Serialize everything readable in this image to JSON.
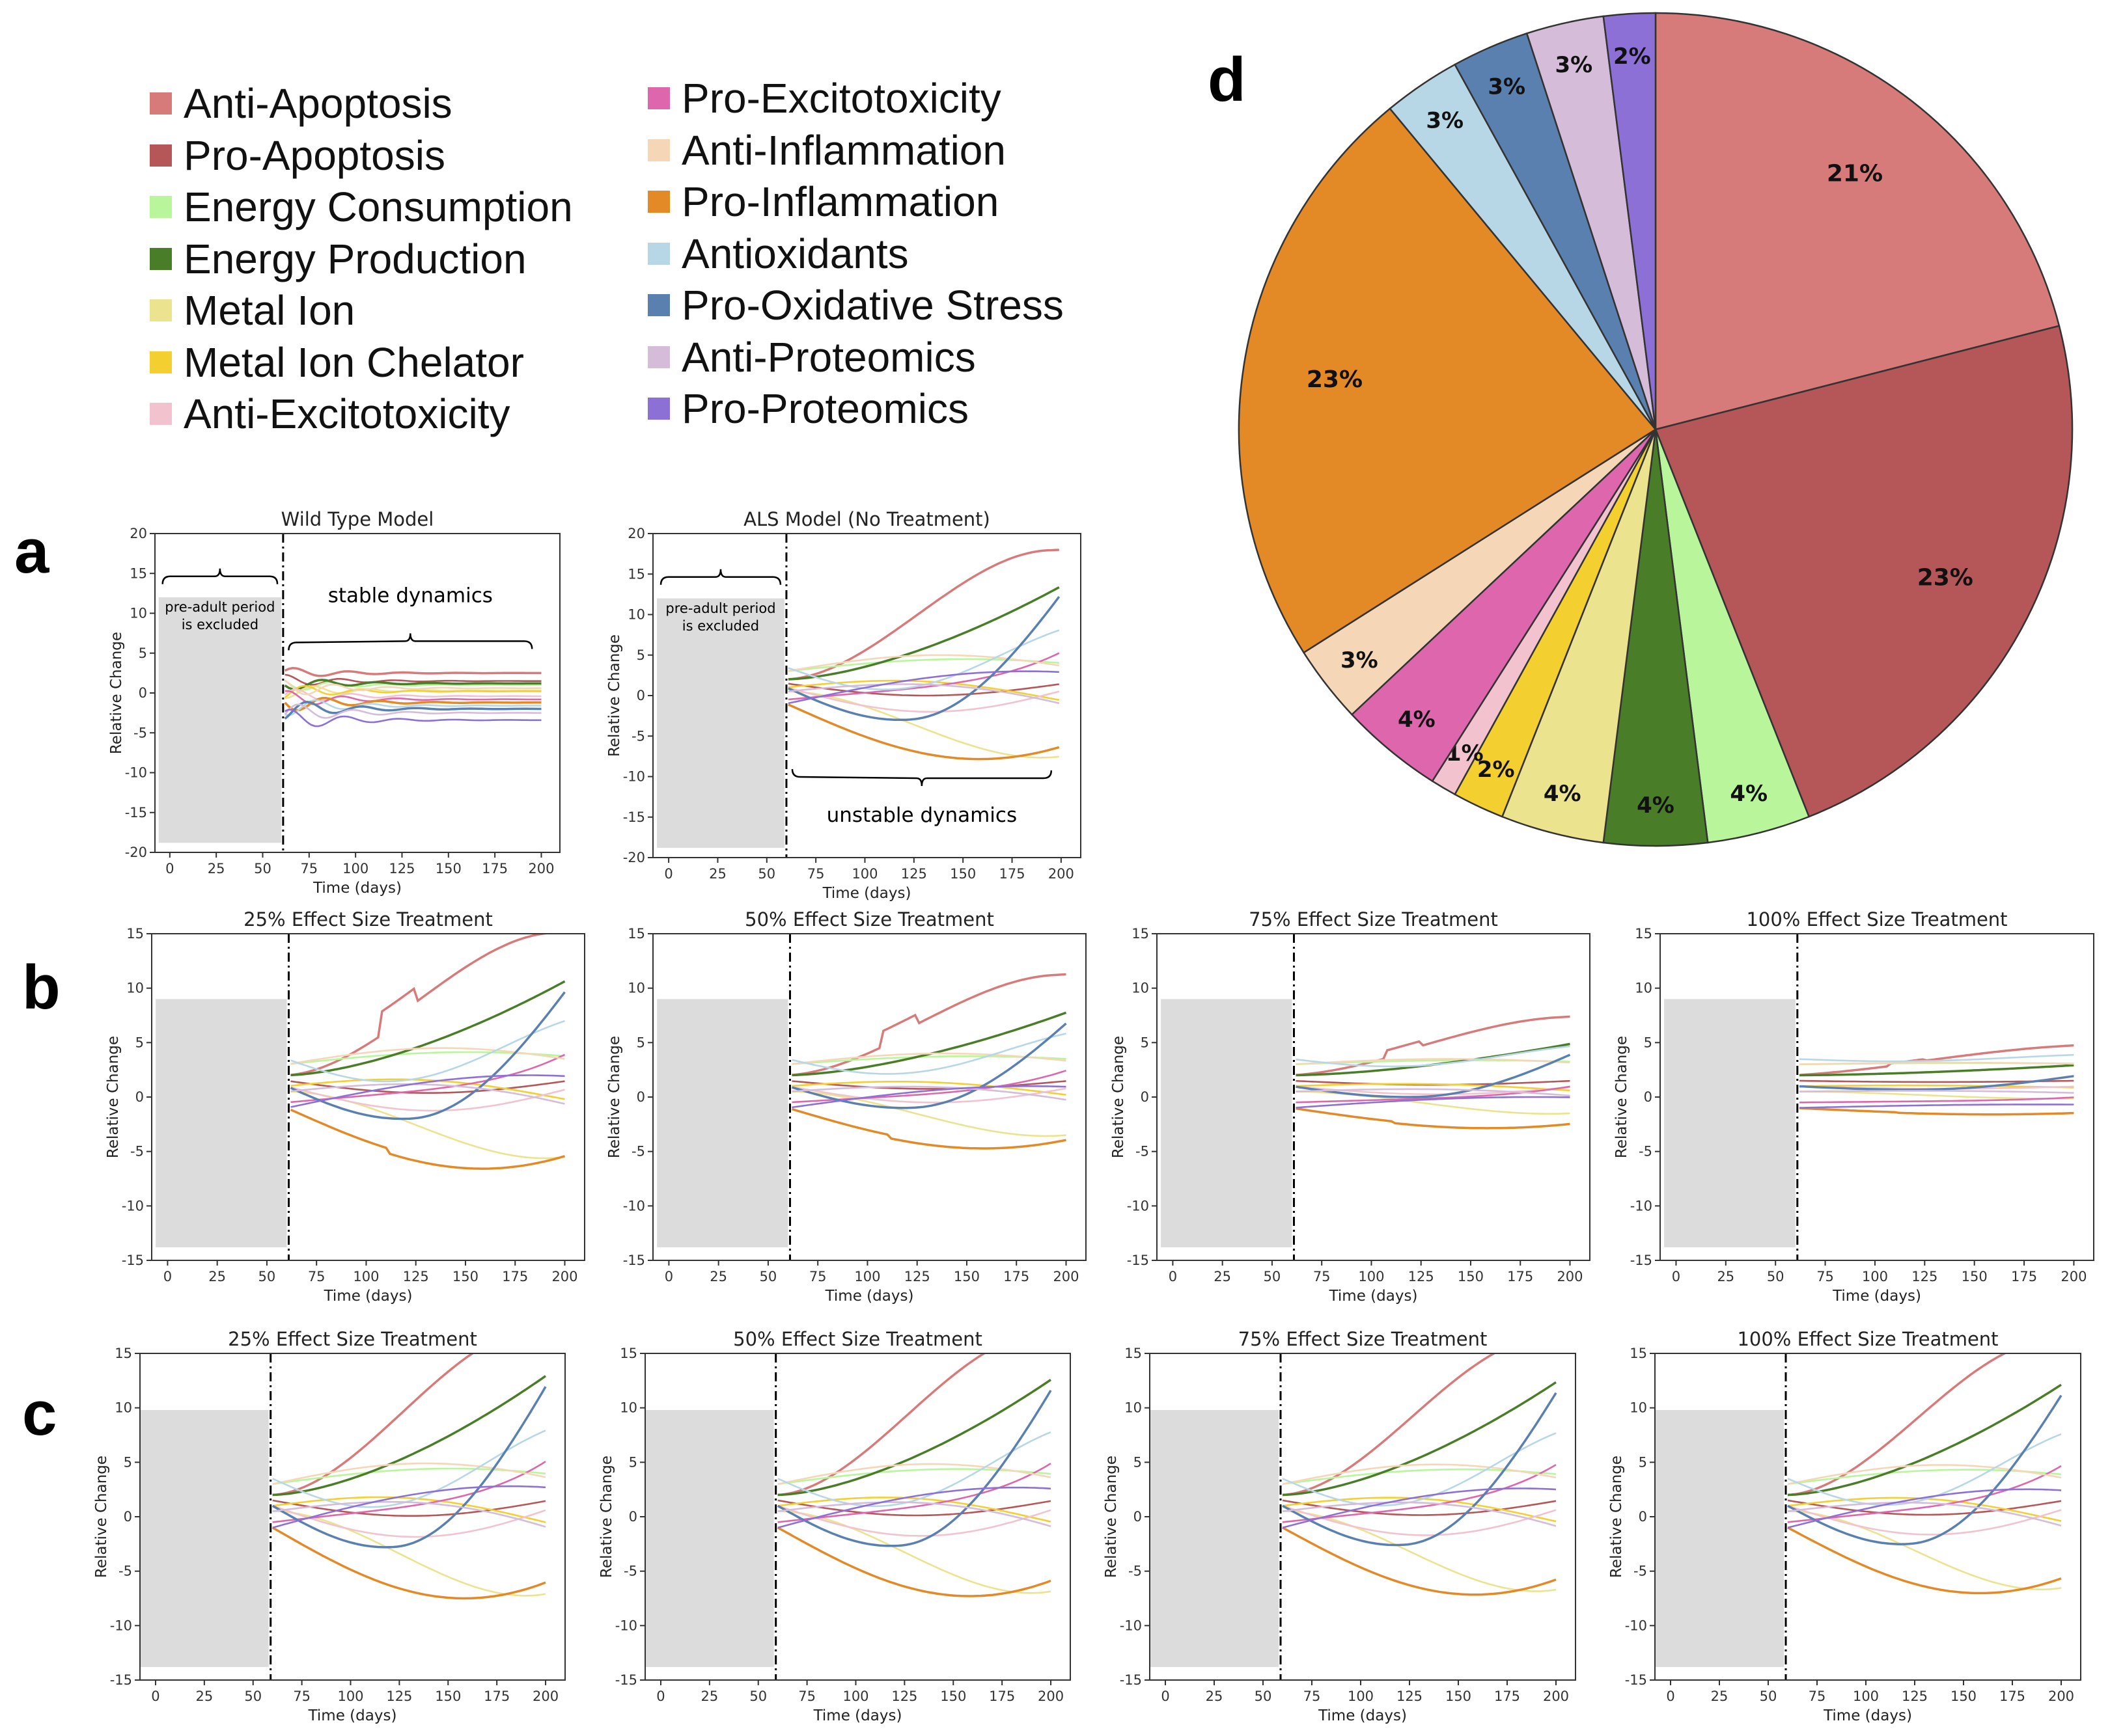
{
  "legend": {
    "items": [
      {
        "label": "Anti-Apoptosis",
        "color": "#d77b7a"
      },
      {
        "label": "Pro-Apoptosis",
        "color": "#b55658"
      },
      {
        "label": "Energy Consumption",
        "color": "#b9f59a"
      },
      {
        "label": "Energy Production",
        "color": "#4a7d27"
      },
      {
        "label": "Metal Ion",
        "color": "#ece38e"
      },
      {
        "label": "Metal Ion Chelator",
        "color": "#f3cf2f"
      },
      {
        "label": "Anti-Excitotoxicity",
        "color": "#f2c3cf"
      },
      {
        "label": "Pro-Excitotoxicity",
        "color": "#dd66ad"
      },
      {
        "label": "Anti-Inflammation",
        "color": "#f5d7b7"
      },
      {
        "label": "Pro-Inflammation",
        "color": "#e38a27"
      },
      {
        "label": "Antioxidants",
        "color": "#b8d7e6"
      },
      {
        "label": "Pro-Oxidative Stress",
        "color": "#5a80b0"
      },
      {
        "label": "Anti-Proteomics",
        "color": "#d5bcd9"
      },
      {
        "label": "Pro-Proteomics",
        "color": "#8c70d6"
      }
    ]
  },
  "panel_labels": {
    "a": "a",
    "b": "b",
    "c": "c",
    "d": "d"
  },
  "chart_data": [
    {
      "id": "a1",
      "type": "line",
      "title": "Wild Type Model",
      "xlabel": "Time (days)",
      "ylabel": "Relative Change",
      "xlim": [
        -8,
        210
      ],
      "ylim": [
        -20,
        20
      ],
      "xticks": [
        0,
        25,
        50,
        75,
        100,
        125,
        150,
        175,
        200
      ],
      "yticks": [
        -20,
        -15,
        -10,
        -5,
        0,
        5,
        10,
        15,
        20
      ],
      "shaded_region": [
        -6,
        60
      ],
      "vline_x": 61,
      "annotations": {
        "shade_text": [
          "pre-adult period",
          "is excluded"
        ],
        "dynamics_text": "stable dynamics"
      },
      "profile": "stable"
    },
    {
      "id": "a2",
      "type": "line",
      "title": "ALS Model (No Treatment)",
      "xlabel": "Time (days)",
      "ylabel": "Relative Change",
      "xlim": [
        -8,
        210
      ],
      "ylim": [
        -20,
        20
      ],
      "xticks": [
        0,
        25,
        50,
        75,
        100,
        125,
        150,
        175,
        200
      ],
      "yticks": [
        -20,
        -15,
        -10,
        -5,
        0,
        5,
        10,
        15,
        20
      ],
      "shaded_region": [
        -6,
        59
      ],
      "vline_x": 60,
      "annotations": {
        "shade_text": [
          "pre-adult period",
          "is excluded"
        ],
        "dynamics_text": "unstable dynamics"
      },
      "profile": "als",
      "scale": 1.0
    },
    {
      "id": "b1",
      "type": "line",
      "title": "25% Effect Size Treatment",
      "xlabel": "Time (days)",
      "ylabel": "Relative Change",
      "xlim": [
        -8,
        210
      ],
      "ylim": [
        -15,
        15
      ],
      "xticks": [
        0,
        25,
        50,
        75,
        100,
        125,
        150,
        175,
        200
      ],
      "yticks": [
        -15,
        -10,
        -5,
        0,
        5,
        10,
        15
      ],
      "shaded_region": [
        -6,
        60
      ],
      "vline_x": 61,
      "profile": "treat",
      "scale": 0.75
    },
    {
      "id": "b2",
      "type": "line",
      "title": "50% Effect Size Treatment",
      "xlabel": "Time (days)",
      "ylabel": "Relative Change",
      "xlim": [
        -8,
        210
      ],
      "ylim": [
        -15,
        15
      ],
      "xticks": [
        0,
        25,
        50,
        75,
        100,
        125,
        150,
        175,
        200
      ],
      "yticks": [
        -15,
        -10,
        -5,
        0,
        5,
        10,
        15
      ],
      "shaded_region": [
        -6,
        60
      ],
      "vline_x": 61,
      "profile": "treat",
      "scale": 0.5
    },
    {
      "id": "b3",
      "type": "line",
      "title": "75% Effect Size Treatment",
      "xlabel": "Time (days)",
      "ylabel": "Relative Change",
      "xlim": [
        -8,
        210
      ],
      "ylim": [
        -15,
        15
      ],
      "xticks": [
        0,
        25,
        50,
        75,
        100,
        125,
        150,
        175,
        200
      ],
      "yticks": [
        -15,
        -10,
        -5,
        0,
        5,
        10,
        15
      ],
      "shaded_region": [
        -6,
        60
      ],
      "vline_x": 61,
      "profile": "treat",
      "scale": 0.25
    },
    {
      "id": "b4",
      "type": "line",
      "title": "100% Effect Size Treatment",
      "xlabel": "Time (days)",
      "ylabel": "Relative Change",
      "xlim": [
        -8,
        210
      ],
      "ylim": [
        -15,
        15
      ],
      "xticks": [
        0,
        25,
        50,
        75,
        100,
        125,
        150,
        175,
        200
      ],
      "yticks": [
        -15,
        -10,
        -5,
        0,
        5,
        10,
        15
      ],
      "shaded_region": [
        -6,
        60
      ],
      "vline_x": 61,
      "profile": "treat",
      "scale": 0.08
    },
    {
      "id": "c1",
      "type": "line",
      "title": "25% Effect Size Treatment",
      "xlabel": "Time (days)",
      "ylabel": "Relative Change",
      "xlim": [
        -8,
        210
      ],
      "ylim": [
        -15,
        15
      ],
      "xticks": [
        0,
        25,
        50,
        75,
        100,
        125,
        150,
        175,
        200
      ],
      "yticks": [
        -15,
        -10,
        -5,
        0,
        5,
        10,
        15
      ],
      "shaded_region": [
        -8,
        58
      ],
      "vline_x": 59,
      "profile": "als",
      "scale": 0.95
    },
    {
      "id": "c2",
      "type": "line",
      "title": "50% Effect Size Treatment",
      "xlabel": "Time (days)",
      "ylabel": "Relative Change",
      "xlim": [
        -8,
        210
      ],
      "ylim": [
        -15,
        15
      ],
      "xticks": [
        0,
        25,
        50,
        75,
        100,
        125,
        150,
        175,
        200
      ],
      "yticks": [
        -15,
        -10,
        -5,
        0,
        5,
        10,
        15
      ],
      "shaded_region": [
        -8,
        58
      ],
      "vline_x": 59,
      "profile": "als",
      "scale": 0.92
    },
    {
      "id": "c3",
      "type": "line",
      "title": "75% Effect Size Treatment",
      "xlabel": "Time (days)",
      "ylabel": "Relative Change",
      "xlim": [
        -8,
        210
      ],
      "ylim": [
        -15,
        15
      ],
      "xticks": [
        0,
        25,
        50,
        75,
        100,
        125,
        150,
        175,
        200
      ],
      "yticks": [
        -15,
        -10,
        -5,
        0,
        5,
        10,
        15
      ],
      "shaded_region": [
        -8,
        58
      ],
      "vline_x": 59,
      "profile": "als",
      "scale": 0.9
    },
    {
      "id": "c4",
      "type": "line",
      "title": "100% Effect Size Treatment",
      "xlabel": "Time (days)",
      "ylabel": "Relative Change",
      "xlim": [
        -8,
        210
      ],
      "ylim": [
        -15,
        15
      ],
      "xticks": [
        0,
        25,
        50,
        75,
        100,
        125,
        150,
        175,
        200
      ],
      "yticks": [
        -15,
        -10,
        -5,
        0,
        5,
        10,
        15
      ],
      "shaded_region": [
        -8,
        58
      ],
      "vline_x": 59,
      "profile": "als",
      "scale": 0.88
    },
    {
      "id": "d",
      "type": "pie",
      "slices": [
        {
          "category": "Anti-Apoptosis",
          "value": 21,
          "label": "21%"
        },
        {
          "category": "Pro-Apoptosis",
          "value": 23,
          "label": "23%"
        },
        {
          "category": "Energy Consumption",
          "value": 4,
          "label": "4%"
        },
        {
          "category": "Energy Production",
          "value": 4,
          "label": "4%"
        },
        {
          "category": "Metal Ion",
          "value": 4,
          "label": "4%"
        },
        {
          "category": "Metal Ion Chelator",
          "value": 2,
          "label": "2%"
        },
        {
          "category": "Anti-Excitotoxicity",
          "value": 1,
          "label": "1%"
        },
        {
          "category": "Pro-Excitotoxicity",
          "value": 4,
          "label": "4%"
        },
        {
          "category": "Anti-Inflammation",
          "value": 3,
          "label": "3%"
        },
        {
          "category": "Pro-Inflammation",
          "value": 23,
          "label": "23%"
        },
        {
          "category": "Antioxidants",
          "value": 3,
          "label": "3%"
        },
        {
          "category": "Pro-Oxidative Stress",
          "value": 3,
          "label": "3%"
        },
        {
          "category": "Anti-Proteomics",
          "value": 3,
          "label": "3%"
        },
        {
          "category": "Pro-Proteomics",
          "value": 2,
          "label": "2%"
        }
      ],
      "start_angle_deg": 0,
      "direction": "clockwise"
    }
  ]
}
